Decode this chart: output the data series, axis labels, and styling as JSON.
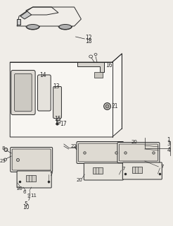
{
  "bg_color": "#f0ede8",
  "line_color": "#2a2a2a",
  "fig_width": 2.46,
  "fig_height": 3.2,
  "dpi": 100
}
